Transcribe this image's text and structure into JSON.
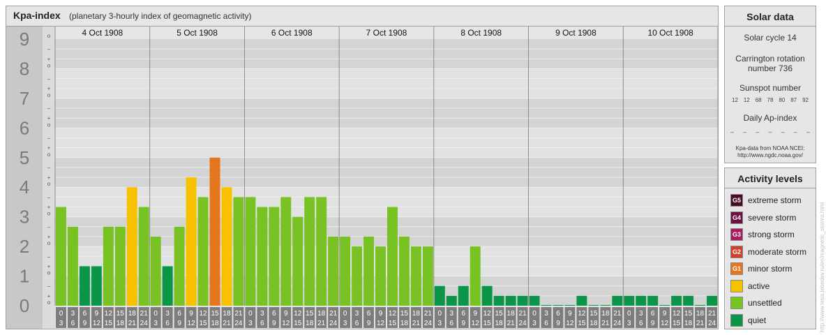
{
  "chart_data": {
    "type": "bar",
    "title": "Kpa-index",
    "subtitle": "(planetary 3-hourly index of geomagnetic activity)",
    "ylim": [
      0,
      9
    ],
    "y_tick_labels": [
      "0",
      "1",
      "2",
      "3",
      "4",
      "5",
      "6",
      "7",
      "8",
      "9"
    ],
    "minor_tick_labels": [
      "o",
      "+",
      "–"
    ],
    "days": [
      "4 Oct 1908",
      "5 Oct 1908",
      "6 Oct 1908",
      "7 Oct 1908",
      "8 Oct 1908",
      "9 Oct 1908",
      "10 Oct 1908"
    ],
    "interval_starts": [
      "0",
      "3",
      "6",
      "9",
      "12",
      "15",
      "18",
      "21"
    ],
    "interval_ends": [
      "3",
      "6",
      "9",
      "12",
      "15",
      "18",
      "21",
      "24"
    ],
    "values": [
      3.333,
      2.667,
      1.333,
      1.333,
      2.667,
      2.667,
      4.0,
      3.333,
      2.333,
      1.333,
      2.667,
      4.333,
      3.667,
      5.0,
      4.0,
      3.667,
      3.667,
      3.333,
      3.333,
      3.667,
      3.0,
      3.667,
      3.667,
      2.333,
      2.333,
      2.0,
      2.333,
      2.0,
      3.333,
      2.333,
      2.0,
      2.0,
      0.667,
      0.333,
      0.667,
      2.0,
      0.667,
      0.333,
      0.333,
      0.333,
      0.333,
      0.0,
      0.0,
      0.0,
      0.333,
      0.0,
      0.0,
      0.333,
      0.333,
      0.333,
      0.333,
      0.0,
      0.333,
      0.333,
      0.0,
      0.333
    ]
  },
  "colors": {
    "quiet": "#0a9548",
    "unsettled": "#79c224",
    "active": "#f8c100",
    "minor_storm": "#e6761d"
  },
  "solar": {
    "title": "Solar data",
    "solar_cycle": "Solar cycle 14",
    "carrington_line1": "Carrington rotation",
    "carrington_line2": "number 736",
    "sunspot_title": "Sunspot number",
    "sunspot_values": [
      "12",
      "12",
      "68",
      "78",
      "80",
      "87",
      "92"
    ],
    "ap_title": "Daily Ap-index",
    "ap_values": [
      "–",
      "–",
      "–",
      "–",
      "–",
      "–",
      "–"
    ],
    "source_line1": "Kpa-data from NOAA NCEI:",
    "source_line2": "http://www.ngdc.noaa.gov/"
  },
  "activity": {
    "title": "Activity levels",
    "items": [
      {
        "badge": "G5",
        "label": "extreme storm",
        "color": "#4a0a2a"
      },
      {
        "badge": "G4",
        "label": "severe storm",
        "color": "#6d0f3f"
      },
      {
        "badge": "G3",
        "label": "strong storm",
        "color": "#a51e5a"
      },
      {
        "badge": "G2",
        "label": "moderate storm",
        "color": "#d0412c"
      },
      {
        "badge": "G1",
        "label": "minor storm",
        "color": "#e6761d"
      },
      {
        "badge": "",
        "label": "active",
        "color": "#f8c100"
      },
      {
        "badge": "",
        "label": "unsettled",
        "color": "#79c224"
      },
      {
        "badge": "",
        "label": "quiet",
        "color": "#0a9548"
      }
    ]
  },
  "credit": "http://www.tesis.lebedev.ru/en/magnetic_storms.html"
}
